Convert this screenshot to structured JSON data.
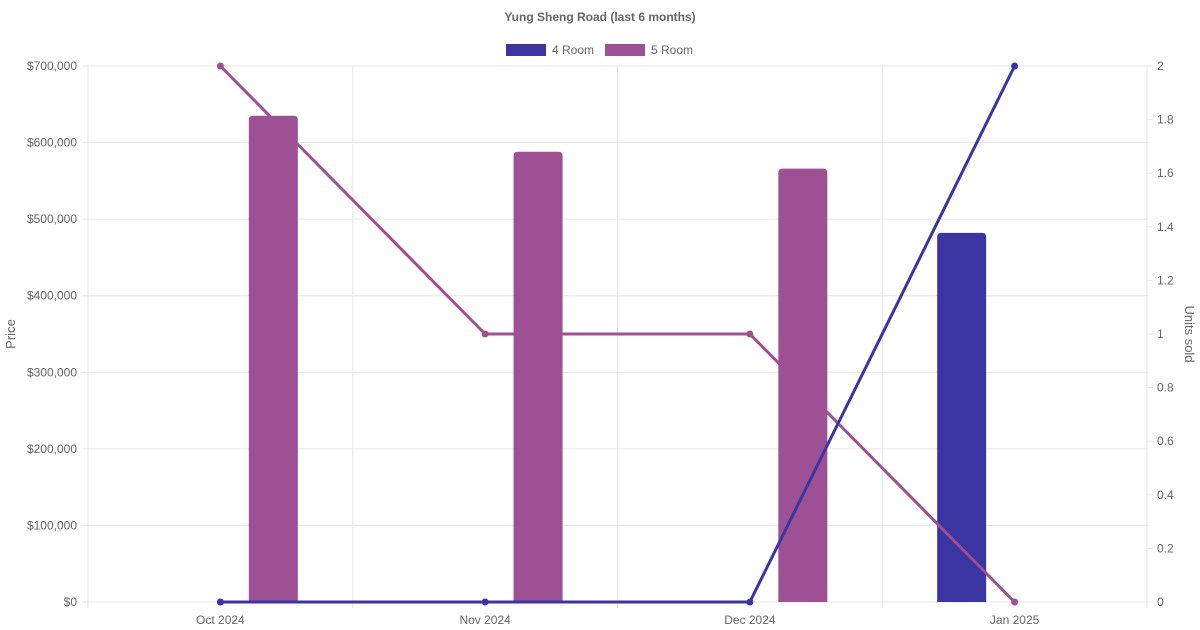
{
  "chart_data": {
    "type": "bar",
    "title": "Yung Sheng Road (last 6 months)",
    "categories": [
      "Oct 2024",
      "Nov 2024",
      "Dec 2024",
      "Jan 2025"
    ],
    "legend": [
      "4 Room",
      "5 Room"
    ],
    "legend_position": "top",
    "grid": true,
    "y_left": {
      "label": "Price",
      "min": 0,
      "max": 700000,
      "ticks": [
        "$0",
        "$100,000",
        "$200,000",
        "$300,000",
        "$400,000",
        "$500,000",
        "$600,000",
        "$700,000"
      ]
    },
    "y_right": {
      "label": "Units sold",
      "min": 0,
      "max": 2,
      "ticks": [
        "0",
        "0.2",
        "0.4",
        "0.6",
        "0.8",
        "1",
        "1.2",
        "1.4",
        "1.6",
        "1.8",
        "2"
      ]
    },
    "series": [
      {
        "name": "4 Room",
        "color": "#3a35a1",
        "price": [
          null,
          null,
          null,
          482000
        ],
        "units_sold": [
          0,
          0,
          0,
          2
        ]
      },
      {
        "name": "5 Room",
        "color": "#9e5094",
        "price": [
          635000,
          588000,
          566000,
          null
        ],
        "units_sold": [
          2,
          1,
          1,
          0
        ]
      }
    ]
  }
}
